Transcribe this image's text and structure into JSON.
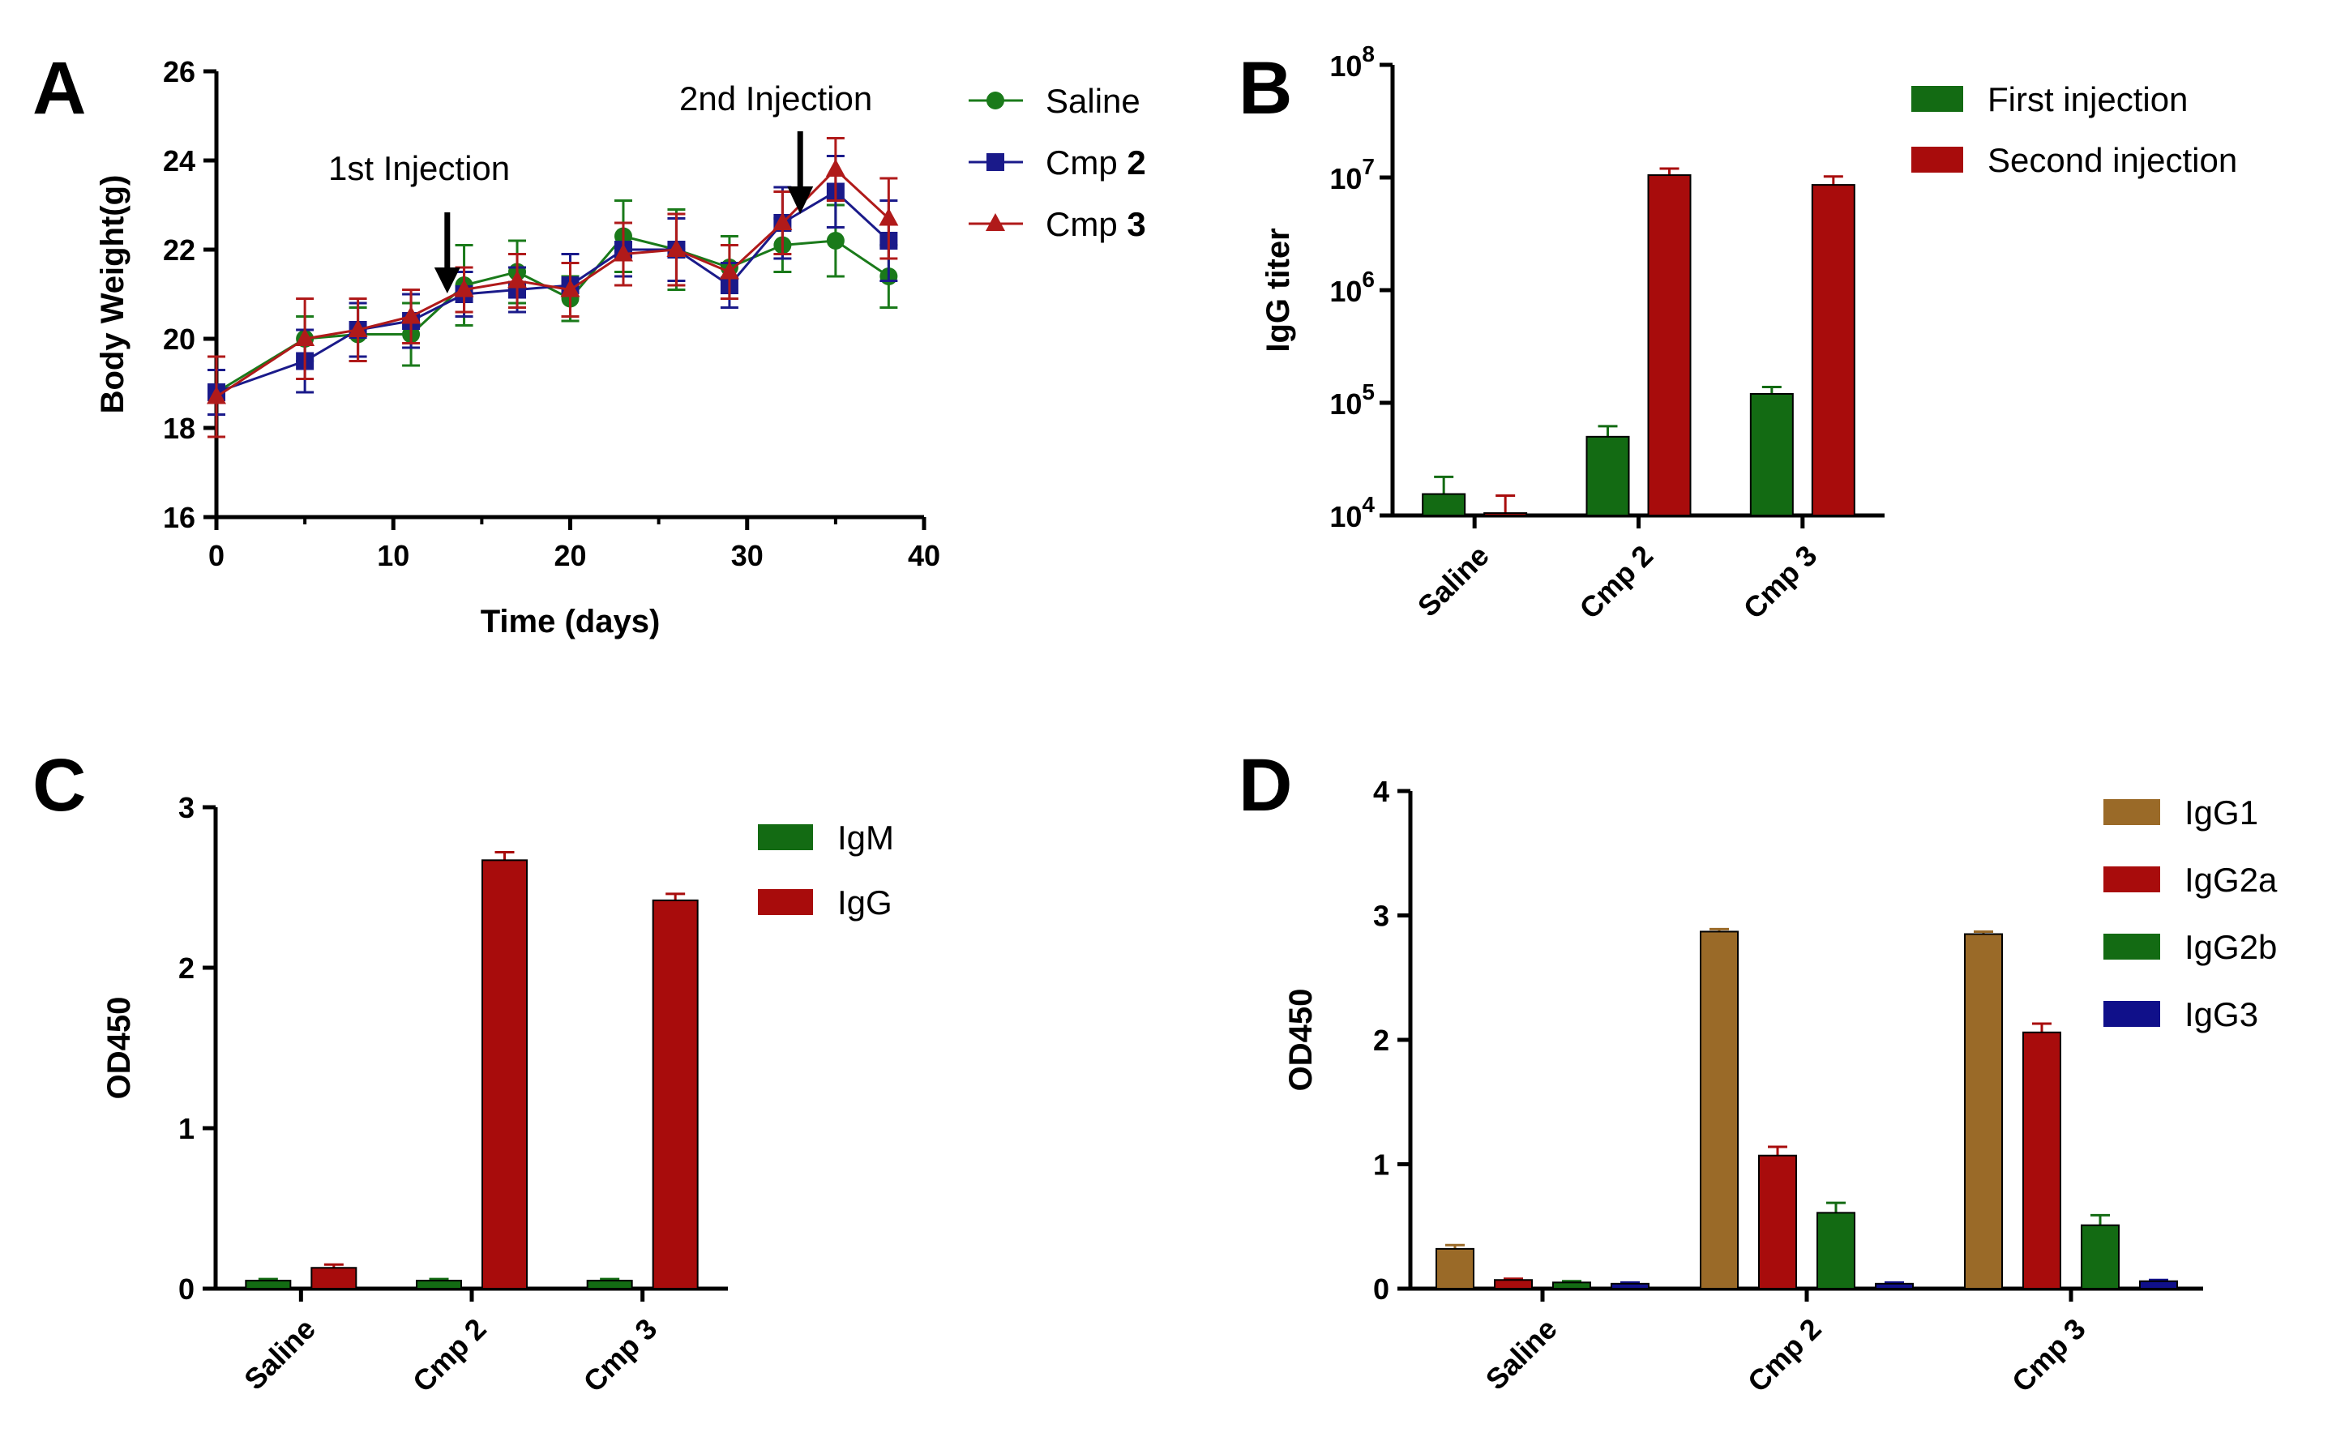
{
  "chart_data": [
    {
      "panel": "A",
      "type": "line",
      "xlabel": "Time (days)",
      "ylabel": "Body Weight(g)",
      "xlim": [
        0,
        40
      ],
      "ylim": [
        16,
        26
      ],
      "xticks": [
        "0",
        "10",
        "20",
        "30",
        "40"
      ],
      "yticks": [
        "16",
        "18",
        "20",
        "22",
        "24",
        "26"
      ],
      "annotations": [
        {
          "text": "1st Injection",
          "x": 12.5
        },
        {
          "text": "2nd Injection",
          "x": 33
        }
      ],
      "x": [
        0,
        5,
        8,
        11,
        14,
        17,
        20,
        23,
        26,
        29,
        32,
        35,
        38
      ],
      "series": [
        {
          "name": "Saline",
          "bold": "",
          "color": "#1a7a1a",
          "marker": "circle",
          "values": [
            18.8,
            20.0,
            20.1,
            20.1,
            21.2,
            21.5,
            20.9,
            22.3,
            22.0,
            21.6,
            22.1,
            22.2,
            21.4
          ],
          "errors": [
            0.5,
            0.5,
            0.6,
            0.7,
            0.9,
            0.7,
            0.5,
            0.8,
            0.9,
            0.7,
            0.6,
            0.8,
            0.7
          ]
        },
        {
          "name": "Cmp ",
          "bold": "2",
          "color": "#1a1a8a",
          "marker": "square",
          "values": [
            18.8,
            19.5,
            20.2,
            20.4,
            21.0,
            21.1,
            21.2,
            22.0,
            22.0,
            21.2,
            22.6,
            23.3,
            22.2
          ],
          "errors": [
            0.5,
            0.7,
            0.6,
            0.6,
            0.5,
            0.5,
            0.7,
            0.6,
            0.7,
            0.5,
            0.8,
            0.8,
            0.9
          ]
        },
        {
          "name": "Cmp ",
          "bold": "3",
          "color": "#b01a1a",
          "marker": "triangle",
          "values": [
            18.7,
            20.0,
            20.2,
            20.5,
            21.1,
            21.3,
            21.1,
            21.9,
            22.0,
            21.5,
            22.6,
            23.8,
            22.7
          ],
          "errors": [
            0.9,
            0.9,
            0.7,
            0.6,
            0.5,
            0.6,
            0.6,
            0.7,
            0.8,
            0.6,
            0.7,
            0.7,
            0.9
          ]
        }
      ]
    },
    {
      "panel": "B",
      "type": "bar",
      "scale": "log",
      "ylabel": "IgG titer",
      "ylim_exp": [
        4,
        8
      ],
      "yticks": [
        {
          "base": "10",
          "exp": "4"
        },
        {
          "base": "10",
          "exp": "5"
        },
        {
          "base": "10",
          "exp": "6"
        },
        {
          "base": "10",
          "exp": "7"
        },
        {
          "base": "10",
          "exp": "8"
        }
      ],
      "categories": [
        "Saline",
        "Cmp 2",
        "Cmp 3"
      ],
      "series": [
        {
          "name": "First injection",
          "color": "#136b13",
          "values": [
            15500,
            50000,
            120000
          ],
          "errors": [
            6500,
            12000,
            18000
          ]
        },
        {
          "name": "Second injection",
          "color": "#a80c0c",
          "values": [
            10500,
            10500000,
            8600000
          ],
          "errors": [
            4500,
            1500000,
            1600000
          ]
        }
      ]
    },
    {
      "panel": "C",
      "type": "bar",
      "ylabel": "OD450",
      "ylim": [
        0,
        3
      ],
      "yticks": [
        "0",
        "1",
        "2",
        "3"
      ],
      "categories": [
        "Saline",
        "Cmp 2",
        "Cmp 3"
      ],
      "series": [
        {
          "name": "IgM",
          "color": "#136b13",
          "values": [
            0.05,
            0.05,
            0.05
          ],
          "errors": [
            0.01,
            0.01,
            0.01
          ]
        },
        {
          "name": "IgG",
          "color": "#a80c0c",
          "values": [
            0.13,
            2.67,
            2.42
          ],
          "errors": [
            0.02,
            0.05,
            0.04
          ]
        }
      ]
    },
    {
      "panel": "D",
      "type": "bar",
      "ylabel": "OD450",
      "ylim": [
        0,
        4
      ],
      "yticks": [
        "0",
        "1",
        "2",
        "3",
        "4"
      ],
      "categories": [
        "Saline",
        "Cmp 2",
        "Cmp 3"
      ],
      "series": [
        {
          "name": "IgG1",
          "color": "#9a6a28",
          "values": [
            0.32,
            2.87,
            2.85
          ],
          "errors": [
            0.03,
            0.02,
            0.02
          ]
        },
        {
          "name": "IgG2a",
          "color": "#a80c0c",
          "values": [
            0.07,
            1.07,
            2.06
          ],
          "errors": [
            0.01,
            0.07,
            0.07
          ]
        },
        {
          "name": "IgG2b",
          "color": "#136b13",
          "values": [
            0.05,
            0.61,
            0.51
          ],
          "errors": [
            0.01,
            0.08,
            0.08
          ]
        },
        {
          "name": "IgG3",
          "color": "#10108a",
          "values": [
            0.04,
            0.04,
            0.06
          ],
          "errors": [
            0.01,
            0.01,
            0.01
          ]
        }
      ]
    }
  ]
}
